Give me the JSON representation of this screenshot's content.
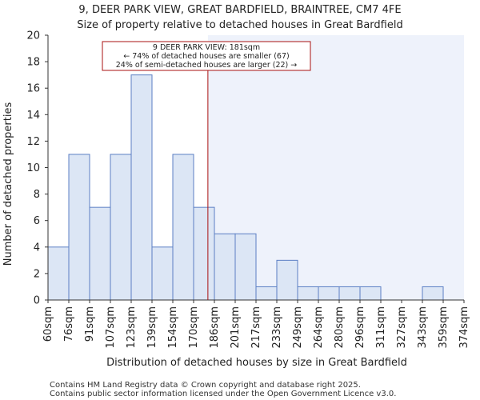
{
  "chart_data": {
    "type": "bar",
    "title_line1": "9, DEER PARK VIEW, GREAT BARDFIELD, BRAINTREE, CM7 4FE",
    "title_line2": "Size of property relative to detached houses in Great Bardfield",
    "xlabel": "Distribution of detached houses by size in Great Bardfield",
    "ylabel": "Number of detached properties",
    "x_tick_labels": [
      "60sqm",
      "76sqm",
      "91sqm",
      "107sqm",
      "123sqm",
      "139sqm",
      "154sqm",
      "170sqm",
      "186sqm",
      "201sqm",
      "217sqm",
      "233sqm",
      "249sqm",
      "264sqm",
      "280sqm",
      "296sqm",
      "311sqm",
      "327sqm",
      "343sqm",
      "359sqm",
      "374sqm"
    ],
    "bin_edges": [
      60,
      76,
      91,
      107,
      123,
      139,
      154,
      170,
      186,
      201,
      217,
      233,
      249,
      264,
      280,
      296,
      311,
      327,
      343,
      359,
      374
    ],
    "values": [
      4,
      11,
      7,
      11,
      17,
      4,
      11,
      7,
      5,
      5,
      1,
      3,
      1,
      1,
      1,
      1,
      0,
      0,
      1,
      0
    ],
    "ylim": [
      0,
      20
    ],
    "y_ticks": [
      0,
      2,
      4,
      6,
      8,
      10,
      12,
      14,
      16,
      18,
      20
    ],
    "property_size": 181,
    "annotation": {
      "line1": "9 DEER PARK VIEW: 181sqm",
      "line2": "← 74% of detached houses are smaller (67)",
      "line3": "24% of semi-detached houses are larger (22) →"
    },
    "colors": {
      "bar_fill": "#dce6f5",
      "bar_stroke": "#5b7fc4",
      "highlight_bg": "#eef2fb",
      "marker_line": "#aa1111",
      "axis": "#333333"
    }
  },
  "footer": {
    "line1": "Contains HM Land Registry data © Crown copyright and database right 2025.",
    "line2": "Contains public sector information licensed under the Open Government Licence v3.0."
  }
}
